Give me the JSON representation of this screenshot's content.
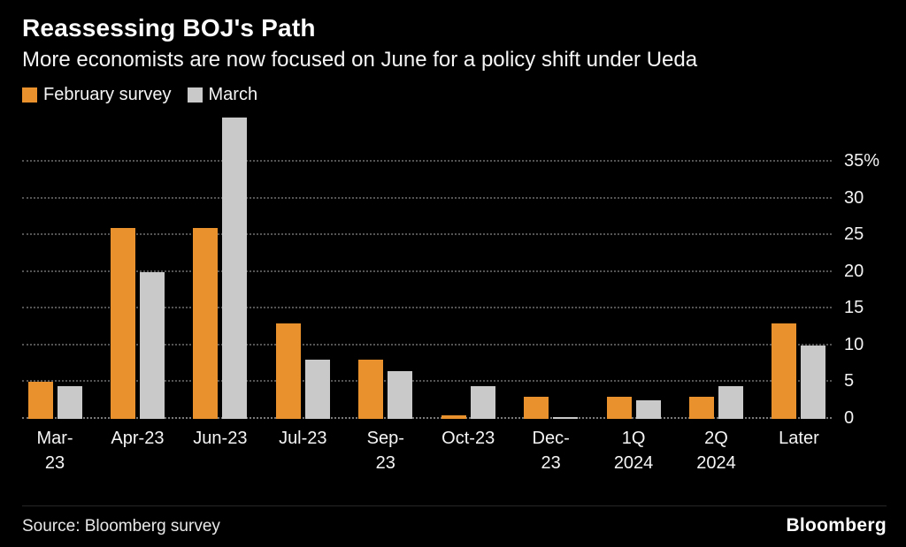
{
  "colors": {
    "background": "#000000",
    "gridline": "#545454",
    "text": "#FFFFFF"
  },
  "footer": {
    "source": "Source:  Bloomberg survey",
    "logo": "Bloomberg"
  },
  "chart_data": {
    "type": "bar",
    "title": "Reassessing BOJ's Path",
    "subtitle": "More economists are now focused on June for a policy shift under Ueda",
    "categories": [
      "Mar-23",
      "Apr-23",
      "Jun-23",
      "Jul-23",
      "Sep-23",
      "Oct-23",
      "Dec-23",
      "1Q 2024",
      "2Q 2024",
      "Later"
    ],
    "x_tick_labels": [
      "Mar-23",
      "Apr-23",
      "Jun-23",
      "Jul-23",
      "Sep-23",
      "Oct-23",
      "Dec-23",
      "1Q\n2024",
      "2Q\n2024",
      "Later"
    ],
    "series": [
      {
        "name": "February survey",
        "color": "#E8912D",
        "values": [
          5,
          26,
          26,
          13,
          8,
          0.5,
          3,
          3,
          3,
          13
        ]
      },
      {
        "name": "March",
        "color": "#C9C9C9",
        "values": [
          4.5,
          20,
          41,
          8,
          6.5,
          4.5,
          0.3,
          2.5,
          4.5,
          10
        ]
      }
    ],
    "ylabel": "%",
    "ylim": [
      0,
      41.5
    ],
    "yticks": [
      0,
      5,
      10,
      15,
      20,
      25,
      30,
      35
    ],
    "ytick_labels": [
      "0",
      "5",
      "10",
      "15",
      "20",
      "25",
      "30",
      "35%"
    ],
    "grid": "horizontal-dotted",
    "legend_position": "top-left",
    "y_axis_side": "right"
  }
}
